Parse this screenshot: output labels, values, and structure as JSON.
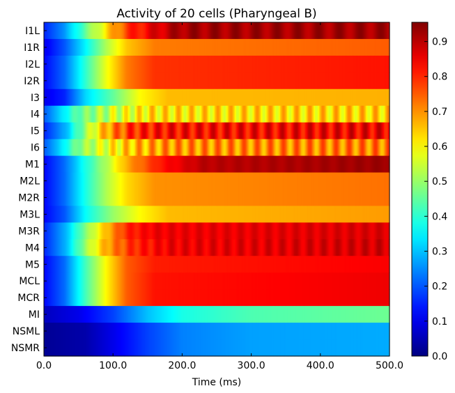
{
  "chart_data": {
    "type": "heatmap",
    "title": "Activity of 20 cells (Pharyngeal B)",
    "xlabel": "Time (ms)",
    "ylabel": "",
    "xlim": [
      0,
      500
    ],
    "x_ticks": [
      0,
      100,
      200,
      300,
      400,
      500
    ],
    "x_tick_labels": [
      "0.0",
      "100.0",
      "200.0",
      "300.0",
      "400.0",
      "500.0"
    ],
    "colormap": "jet",
    "colorbar": {
      "vmin": 0.0,
      "vmax": 0.955,
      "ticks": [
        0.0,
        0.1,
        0.2,
        0.3,
        0.4,
        0.5,
        0.6,
        0.7,
        0.8,
        0.9
      ],
      "tick_labels": [
        "0.0",
        "0.1",
        "0.2",
        "0.3",
        "0.4",
        "0.5",
        "0.6",
        "0.7",
        "0.8",
        "0.9"
      ]
    },
    "rows": [
      {
        "name": "I1L",
        "profile": [
          [
            0,
            0.15
          ],
          [
            30,
            0.26
          ],
          [
            60,
            0.45
          ],
          [
            90,
            0.62
          ],
          [
            120,
            0.78
          ],
          [
            170,
            0.88
          ],
          [
            200,
            0.92
          ],
          [
            500,
            0.92
          ]
        ],
        "oscillation": {
          "amp": 0.03,
          "period_ms": 30
        }
      },
      {
        "name": "I1R",
        "profile": [
          [
            0,
            0.1
          ],
          [
            30,
            0.2
          ],
          [
            60,
            0.35
          ],
          [
            90,
            0.52
          ],
          [
            120,
            0.65
          ],
          [
            160,
            0.72
          ],
          [
            500,
            0.75
          ]
        ],
        "oscillation": {
          "amp": 0.0,
          "period_ms": 20
        }
      },
      {
        "name": "I2L",
        "profile": [
          [
            0,
            0.12
          ],
          [
            30,
            0.22
          ],
          [
            60,
            0.4
          ],
          [
            90,
            0.58
          ],
          [
            120,
            0.72
          ],
          [
            160,
            0.79
          ],
          [
            500,
            0.82
          ]
        ],
        "oscillation": {
          "amp": 0.0,
          "period_ms": 20
        }
      },
      {
        "name": "I2R",
        "profile": [
          [
            0,
            0.12
          ],
          [
            30,
            0.22
          ],
          [
            60,
            0.4
          ],
          [
            90,
            0.58
          ],
          [
            120,
            0.72
          ],
          [
            160,
            0.79
          ],
          [
            500,
            0.82
          ]
        ],
        "oscillation": {
          "amp": 0.0,
          "period_ms": 20
        }
      },
      {
        "name": "I3",
        "profile": [
          [
            0,
            0.1
          ],
          [
            30,
            0.15
          ],
          [
            60,
            0.32
          ],
          [
            100,
            0.45
          ],
          [
            140,
            0.6
          ],
          [
            180,
            0.66
          ],
          [
            500,
            0.67
          ]
        ],
        "oscillation": {
          "amp": 0.0,
          "period_ms": 20
        }
      },
      {
        "name": "I4",
        "profile": [
          [
            0,
            0.2
          ],
          [
            20,
            0.3
          ],
          [
            50,
            0.45
          ],
          [
            100,
            0.55
          ],
          [
            150,
            0.62
          ],
          [
            500,
            0.64
          ]
        ],
        "oscillation": {
          "amp": 0.07,
          "period_ms": 19
        }
      },
      {
        "name": "I5",
        "profile": [
          [
            0,
            0.15
          ],
          [
            30,
            0.28
          ],
          [
            60,
            0.5
          ],
          [
            90,
            0.68
          ],
          [
            130,
            0.8
          ],
          [
            180,
            0.83
          ],
          [
            500,
            0.85
          ]
        ],
        "oscillation": {
          "amp": 0.06,
          "period_ms": 20
        }
      },
      {
        "name": "I6",
        "profile": [
          [
            0,
            0.2
          ],
          [
            20,
            0.3
          ],
          [
            50,
            0.48
          ],
          [
            90,
            0.58
          ],
          [
            130,
            0.66
          ],
          [
            180,
            0.7
          ],
          [
            500,
            0.72
          ]
        ],
        "oscillation": {
          "amp": 0.07,
          "period_ms": 19
        }
      },
      {
        "name": "M1",
        "profile": [
          [
            0,
            0.12
          ],
          [
            30,
            0.22
          ],
          [
            60,
            0.38
          ],
          [
            90,
            0.52
          ],
          [
            120,
            0.68
          ],
          [
            170,
            0.82
          ],
          [
            230,
            0.9
          ],
          [
            500,
            0.93
          ]
        ],
        "oscillation": {
          "amp": 0.01,
          "period_ms": 25
        }
      },
      {
        "name": "M2L",
        "profile": [
          [
            0,
            0.12
          ],
          [
            30,
            0.22
          ],
          [
            60,
            0.38
          ],
          [
            90,
            0.52
          ],
          [
            120,
            0.63
          ],
          [
            160,
            0.7
          ],
          [
            500,
            0.73
          ]
        ],
        "oscillation": {
          "amp": 0.0,
          "period_ms": 20
        }
      },
      {
        "name": "M2R",
        "profile": [
          [
            0,
            0.12
          ],
          [
            30,
            0.22
          ],
          [
            60,
            0.38
          ],
          [
            90,
            0.52
          ],
          [
            120,
            0.63
          ],
          [
            160,
            0.7
          ],
          [
            500,
            0.73
          ]
        ],
        "oscillation": {
          "amp": 0.0,
          "period_ms": 20
        }
      },
      {
        "name": "M3L",
        "profile": [
          [
            0,
            0.12
          ],
          [
            30,
            0.2
          ],
          [
            60,
            0.36
          ],
          [
            100,
            0.5
          ],
          [
            140,
            0.6
          ],
          [
            180,
            0.66
          ],
          [
            500,
            0.69
          ]
        ],
        "oscillation": {
          "amp": 0.0,
          "period_ms": 20
        }
      },
      {
        "name": "M3R",
        "profile": [
          [
            0,
            0.15
          ],
          [
            30,
            0.28
          ],
          [
            60,
            0.48
          ],
          [
            90,
            0.66
          ],
          [
            120,
            0.8
          ],
          [
            160,
            0.85
          ],
          [
            500,
            0.87
          ]
        ],
        "oscillation": {
          "amp": 0.02,
          "period_ms": 20
        }
      },
      {
        "name": "M4",
        "profile": [
          [
            0,
            0.15
          ],
          [
            30,
            0.28
          ],
          [
            60,
            0.5
          ],
          [
            90,
            0.68
          ],
          [
            130,
            0.8
          ],
          [
            180,
            0.85
          ],
          [
            500,
            0.88
          ]
        ],
        "oscillation": {
          "amp": 0.03,
          "period_ms": 20
        }
      },
      {
        "name": "M5",
        "profile": [
          [
            0,
            0.12
          ],
          [
            30,
            0.22
          ],
          [
            60,
            0.42
          ],
          [
            90,
            0.6
          ],
          [
            120,
            0.75
          ],
          [
            160,
            0.81
          ],
          [
            500,
            0.84
          ]
        ],
        "oscillation": {
          "amp": 0.0,
          "period_ms": 20
        }
      },
      {
        "name": "MCL",
        "profile": [
          [
            0,
            0.12
          ],
          [
            30,
            0.22
          ],
          [
            60,
            0.42
          ],
          [
            90,
            0.6
          ],
          [
            120,
            0.75
          ],
          [
            160,
            0.82
          ],
          [
            500,
            0.85
          ]
        ],
        "oscillation": {
          "amp": 0.0,
          "period_ms": 20
        }
      },
      {
        "name": "MCR",
        "profile": [
          [
            0,
            0.12
          ],
          [
            30,
            0.22
          ],
          [
            60,
            0.42
          ],
          [
            90,
            0.6
          ],
          [
            120,
            0.75
          ],
          [
            160,
            0.82
          ],
          [
            500,
            0.85
          ]
        ],
        "oscillation": {
          "amp": 0.0,
          "period_ms": 20
        }
      },
      {
        "name": "MI",
        "profile": [
          [
            0,
            0.06
          ],
          [
            50,
            0.1
          ],
          [
            100,
            0.18
          ],
          [
            150,
            0.3
          ],
          [
            200,
            0.38
          ],
          [
            300,
            0.43
          ],
          [
            500,
            0.46
          ]
        ],
        "oscillation": {
          "amp": 0.0,
          "period_ms": 20
        }
      },
      {
        "name": "NSML",
        "profile": [
          [
            0,
            0.02
          ],
          [
            60,
            0.04
          ],
          [
            100,
            0.1
          ],
          [
            150,
            0.18
          ],
          [
            200,
            0.24
          ],
          [
            300,
            0.27
          ],
          [
            500,
            0.28
          ]
        ],
        "oscillation": {
          "amp": 0.0,
          "period_ms": 20
        }
      },
      {
        "name": "NSMR",
        "profile": [
          [
            0,
            0.02
          ],
          [
            60,
            0.04
          ],
          [
            100,
            0.1
          ],
          [
            150,
            0.18
          ],
          [
            200,
            0.24
          ],
          [
            300,
            0.27
          ],
          [
            500,
            0.28
          ]
        ],
        "oscillation": {
          "amp": 0.0,
          "period_ms": 20
        }
      }
    ]
  }
}
